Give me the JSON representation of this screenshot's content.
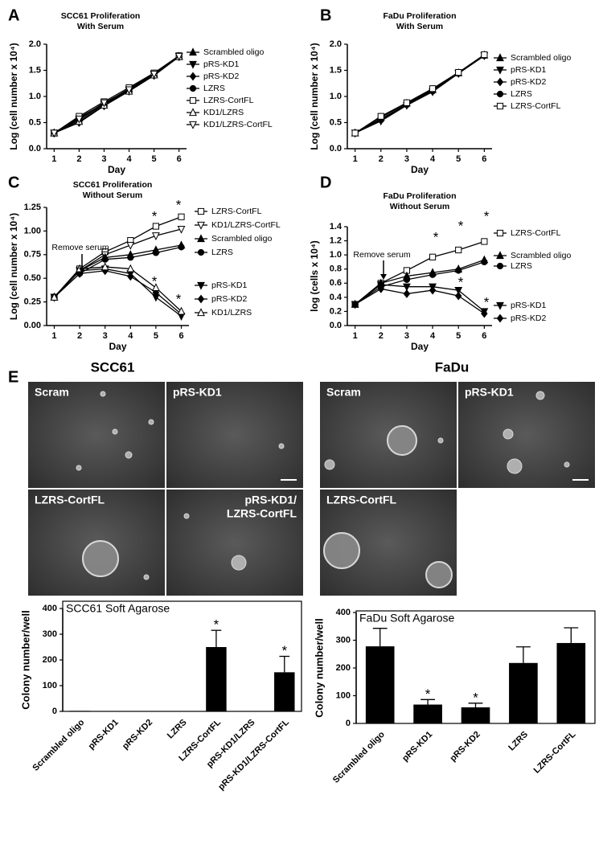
{
  "panel_labels": [
    "A",
    "B",
    "C",
    "D",
    "E"
  ],
  "chart_data": [
    {
      "type": "line",
      "title": "SCC61 Proliferation",
      "subtitle": "With Serum",
      "x_label": "Day",
      "y_label": "Log (cell number x 10⁴)",
      "x": [
        1,
        2,
        3,
        4,
        5,
        6
      ],
      "xlim": [
        0.7,
        6.3
      ],
      "xticks": [
        1,
        2,
        3,
        4,
        5,
        6
      ],
      "ylim": [
        0,
        2
      ],
      "yticks": [
        {
          "value": 0,
          "label": "0.0"
        },
        0.5,
        {
          "value": 1,
          "label": "1.0"
        },
        1.5,
        {
          "value": 2,
          "label": "2.0"
        }
      ],
      "series": [
        {
          "name": "Scrambled oligo",
          "color": "#000000",
          "marker": "triangle-up",
          "filled": true,
          "values": [
            0.3,
            0.58,
            0.87,
            1.14,
            1.43,
            1.77
          ]
        },
        {
          "name": "pRS-KD1",
          "color": "#000000",
          "marker": "triangle-down",
          "filled": true,
          "values": [
            0.3,
            0.55,
            0.85,
            1.12,
            1.42,
            1.77
          ]
        },
        {
          "name": "pRS-KD2",
          "color": "#000000",
          "marker": "diamond",
          "filled": true,
          "values": [
            0.3,
            0.5,
            0.82,
            1.1,
            1.4,
            1.76
          ]
        },
        {
          "name": "LZRS",
          "color": "#000000",
          "marker": "circle",
          "filled": true,
          "values": [
            0.3,
            0.6,
            0.86,
            1.15,
            1.44,
            1.77
          ]
        },
        {
          "name": "LZRS-CortFL",
          "color": "#000000",
          "marker": "square",
          "filled": false,
          "values": [
            0.3,
            0.62,
            0.9,
            1.17,
            1.45,
            1.78
          ]
        },
        {
          "name": "KD1/LZRS",
          "color": "#000000",
          "marker": "triangle-up",
          "filled": false,
          "values": [
            0.3,
            0.52,
            0.83,
            1.1,
            1.41,
            1.76
          ]
        },
        {
          "name": "KD1/LZRS-CortFL",
          "color": "#000000",
          "marker": "triangle-down",
          "filled": false,
          "values": [
            0.3,
            0.57,
            0.88,
            1.13,
            1.43,
            1.77
          ]
        }
      ],
      "annotations": []
    },
    {
      "type": "line",
      "title": "FaDu Proliferation",
      "subtitle": "With  Serum",
      "x_label": "Day",
      "y_label": "Log (cell number x 10⁴)",
      "x": [
        1,
        2,
        3,
        4,
        5,
        6
      ],
      "xlim": [
        0.7,
        6.3
      ],
      "xticks": [
        1,
        2,
        3,
        4,
        5,
        6
      ],
      "ylim": [
        0,
        2
      ],
      "yticks": [
        {
          "value": 0,
          "label": "0.0"
        },
        0.5,
        {
          "value": 1,
          "label": "1.0"
        },
        1.5,
        {
          "value": 2,
          "label": "2.0"
        }
      ],
      "series": [
        {
          "name": "Scrambled oligo",
          "color": "#000000",
          "marker": "triangle-up",
          "filled": true,
          "values": [
            0.3,
            0.6,
            0.87,
            1.13,
            1.45,
            1.79
          ]
        },
        {
          "name": "pRS-KD1",
          "color": "#000000",
          "marker": "triangle-down",
          "filled": true,
          "values": [
            0.3,
            0.53,
            0.83,
            1.09,
            1.44,
            1.78
          ]
        },
        {
          "name": "pRS-KD2",
          "color": "#000000",
          "marker": "diamond",
          "filled": true,
          "values": [
            0.3,
            0.57,
            0.85,
            1.12,
            1.45,
            1.79
          ]
        },
        {
          "name": "LZRS",
          "color": "#000000",
          "marker": "circle",
          "filled": true,
          "values": [
            0.3,
            0.55,
            0.84,
            1.1,
            1.44,
            1.78
          ]
        },
        {
          "name": "LZRS-CortFL",
          "color": "#000000",
          "marker": "square",
          "filled": false,
          "values": [
            0.3,
            0.62,
            0.88,
            1.15,
            1.46,
            1.8
          ]
        }
      ],
      "annotations": []
    },
    {
      "type": "line",
      "title": "SCC61 Proliferation",
      "subtitle": "Without Serum",
      "x_label": "Day",
      "y_label": "Log (cell number x 10⁴)",
      "x": [
        1,
        2,
        3,
        4,
        5,
        6
      ],
      "xlim": [
        0.7,
        6.3
      ],
      "xticks": [
        1,
        2,
        3,
        4,
        5,
        6
      ],
      "ylim": [
        0,
        1.25
      ],
      "yticks": [
        {
          "value": 0,
          "label": "0.00"
        },
        0.25,
        {
          "value": 0.5,
          "label": "0.50"
        },
        0.75,
        {
          "value": 1,
          "label": "1.00"
        },
        1.25
      ],
      "series": [
        {
          "name": "LZRS-CortFL",
          "color": "#000000",
          "marker": "square",
          "filled": false,
          "values": [
            0.3,
            0.6,
            0.78,
            0.9,
            1.05,
            1.15
          ]
        },
        {
          "name": "KD1/LZRS-CortFL",
          "color": "#000000",
          "marker": "triangle-down",
          "filled": false,
          "values": [
            0.3,
            0.58,
            0.75,
            0.85,
            0.95,
            1.02
          ]
        },
        {
          "name": "Scrambled oligo",
          "color": "#000000",
          "marker": "triangle-up",
          "filled": true,
          "values": [
            0.3,
            0.58,
            0.72,
            0.75,
            0.8,
            0.85
          ]
        },
        {
          "name": "LZRS",
          "color": "#000000",
          "marker": "circle",
          "filled": true,
          "values": [
            0.3,
            0.55,
            0.7,
            0.72,
            0.77,
            0.83
          ]
        },
        {
          "name": "pRS-KD1",
          "color": "#000000",
          "marker": "triangle-down",
          "filled": true,
          "values": [
            0.3,
            0.58,
            0.6,
            0.55,
            0.3,
            0.1
          ]
        },
        {
          "name": "pRS-KD2",
          "color": "#000000",
          "marker": "diamond",
          "filled": true,
          "values": [
            0.3,
            0.55,
            0.58,
            0.52,
            0.35,
            0.12
          ]
        },
        {
          "name": "KD1/LZRS",
          "color": "#000000",
          "marker": "triangle-up",
          "filled": false,
          "values": [
            0.3,
            0.6,
            0.62,
            0.6,
            0.4,
            0.15
          ]
        }
      ],
      "annotations": [
        "Remove serum",
        "*",
        "*",
        "*",
        "*"
      ]
    },
    {
      "type": "line",
      "title": "FaDu Proliferation",
      "subtitle": "Without  Serum",
      "x_label": "Day",
      "y_label": "log (cells x 10⁴)",
      "x": [
        1,
        2,
        3,
        4,
        5,
        6
      ],
      "xlim": [
        0.7,
        6.3
      ],
      "xticks": [
        1,
        2,
        3,
        4,
        5,
        6
      ],
      "ylim": [
        0,
        1.4
      ],
      "yticks": [
        {
          "value": 0,
          "label": "0.0"
        },
        0.2,
        0.4,
        0.6,
        0.8,
        {
          "value": 1,
          "label": "1.0"
        },
        1.2,
        1.4
      ],
      "series": [
        {
          "name": "LZRS-CortFL",
          "color": "#000000",
          "marker": "square",
          "filled": false,
          "values": [
            0.3,
            0.6,
            0.78,
            0.97,
            1.07,
            1.19
          ]
        },
        {
          "name": "Scrambled oligo",
          "color": "#000000",
          "marker": "triangle-up",
          "filled": true,
          "values": [
            0.3,
            0.6,
            0.7,
            0.75,
            0.8,
            0.93
          ]
        },
        {
          "name": "LZRS",
          "color": "#000000",
          "marker": "circle",
          "filled": true,
          "values": [
            0.3,
            0.55,
            0.65,
            0.72,
            0.78,
            0.9
          ]
        },
        {
          "name": "pRS-KD1",
          "color": "#000000",
          "marker": "triangle-down",
          "filled": true,
          "values": [
            0.3,
            0.58,
            0.55,
            0.55,
            0.5,
            0.2
          ]
        },
        {
          "name": "pRS-KD2",
          "color": "#000000",
          "marker": "diamond",
          "filled": true,
          "values": [
            0.3,
            0.52,
            0.45,
            0.5,
            0.42,
            0.17
          ]
        }
      ],
      "annotations": [
        "Remove serum",
        "*",
        "*",
        "*",
        "*",
        "*"
      ]
    },
    {
      "type": "bar",
      "title": "SCC61 Soft Agarose",
      "y_label": "Colony number/well",
      "color": "#000000",
      "categories": [
        "Scrambled oligo",
        "pRS-KD1",
        "pRS-KD2",
        "LZRS",
        "LZRS-CortFL",
        "pRS-KD1/LZRS",
        "pRS-KD1/LZRS-CortFL"
      ],
      "values": [
        2,
        0,
        0,
        0,
        250,
        0,
        152
      ],
      "errors": [
        0,
        0,
        0,
        0,
        65,
        0,
        62
      ],
      "ylim": [
        0,
        400
      ],
      "yticks": [
        0,
        100,
        200,
        300,
        400
      ],
      "annotations": [
        {
          "text": "*",
          "category": "LZRS-CortFL"
        },
        {
          "text": "*",
          "category": "pRS-KD1/LZRS-CortFL"
        }
      ]
    },
    {
      "type": "bar",
      "title": "FaDu Soft Agarose",
      "y_label": "Colony number/well",
      "color": "#000000",
      "categories": [
        "Scrambled oligo",
        "pRS-KD1",
        "pRS-KD2",
        "LZRS",
        "LZRS-CortFL"
      ],
      "values": [
        278,
        68,
        58,
        218,
        290
      ],
      "errors": [
        65,
        18,
        15,
        58,
        55
      ],
      "ylim": [
        0,
        400
      ],
      "yticks": [
        0,
        100,
        200,
        300,
        400
      ],
      "annotations": [
        {
          "text": "*",
          "category": "pRS-KD1"
        },
        {
          "text": "*",
          "category": "pRS-KD2"
        }
      ]
    }
  ],
  "micrographs": {
    "groups": [
      {
        "title": "SCC61",
        "panels": [
          [
            "Scram"
          ],
          [
            "pRS-KD1"
          ],
          [
            "LZRS-CortFL"
          ],
          [
            "pRS-KD1/",
            "LZRS-CortFL"
          ]
        ]
      },
      {
        "title": "FaDu",
        "panels": [
          [
            "Scram"
          ],
          [
            "pRS-KD1"
          ],
          [
            "LZRS-CortFL"
          ]
        ]
      }
    ]
  }
}
